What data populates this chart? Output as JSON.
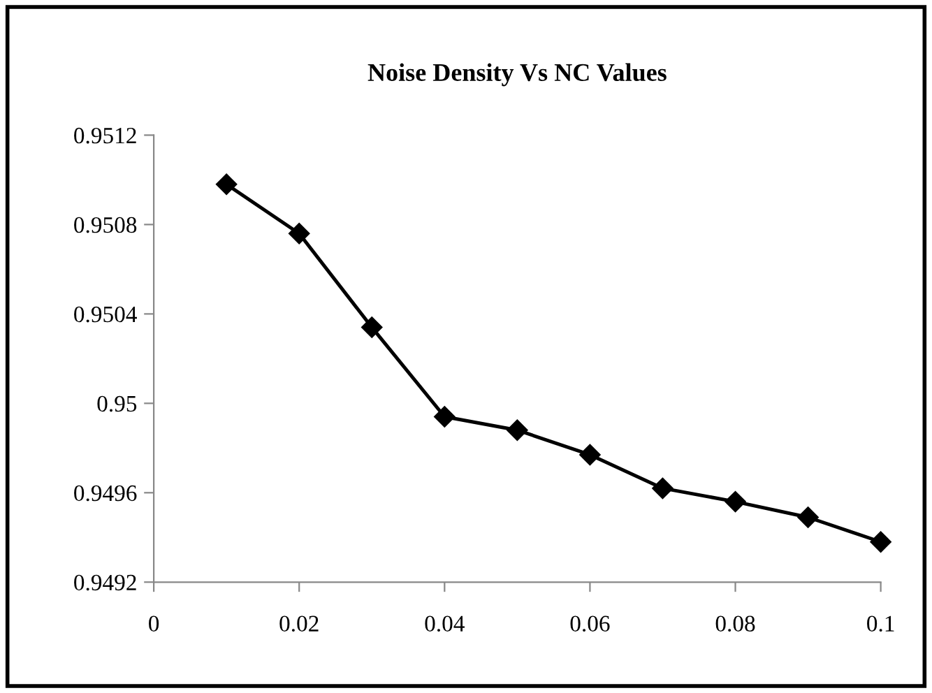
{
  "chart_data": {
    "type": "line",
    "title": "Noise Density Vs NC Values",
    "x": [
      0.01,
      0.02,
      0.03,
      0.04,
      0.05,
      0.06,
      0.07,
      0.08,
      0.09,
      0.1
    ],
    "series": [
      {
        "color": "#000000",
        "values": [
          0.95098,
          0.95076,
          0.95034,
          0.94994,
          0.94988,
          0.94977,
          0.94962,
          0.94956,
          0.94949,
          0.94938
        ]
      }
    ],
    "xlim": [
      0,
      0.1
    ],
    "xticks": [
      0,
      0.02,
      0.04,
      0.06,
      0.08,
      0.1
    ],
    "ylim": [
      0.9492,
      0.9512
    ],
    "yticks": [
      0.9492,
      0.9496,
      0.95,
      0.9504,
      0.9508,
      0.9512
    ],
    "grid": false,
    "legend": false,
    "marker": "diamond",
    "line_style": "solid"
  }
}
